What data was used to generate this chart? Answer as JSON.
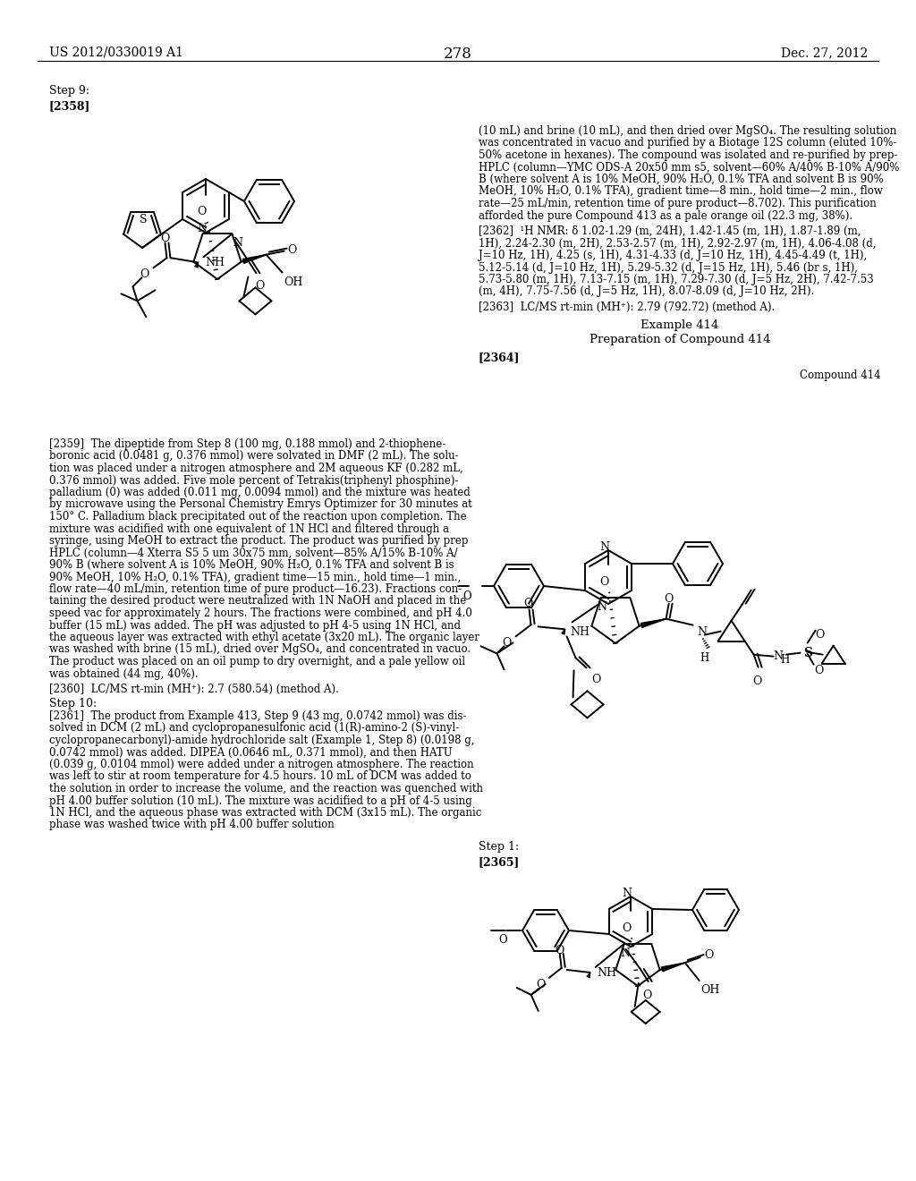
{
  "page_number": "278",
  "patent_number": "US 2012/0330019 A1",
  "patent_date": "Dec. 27, 2012",
  "background_color": "#ffffff"
}
